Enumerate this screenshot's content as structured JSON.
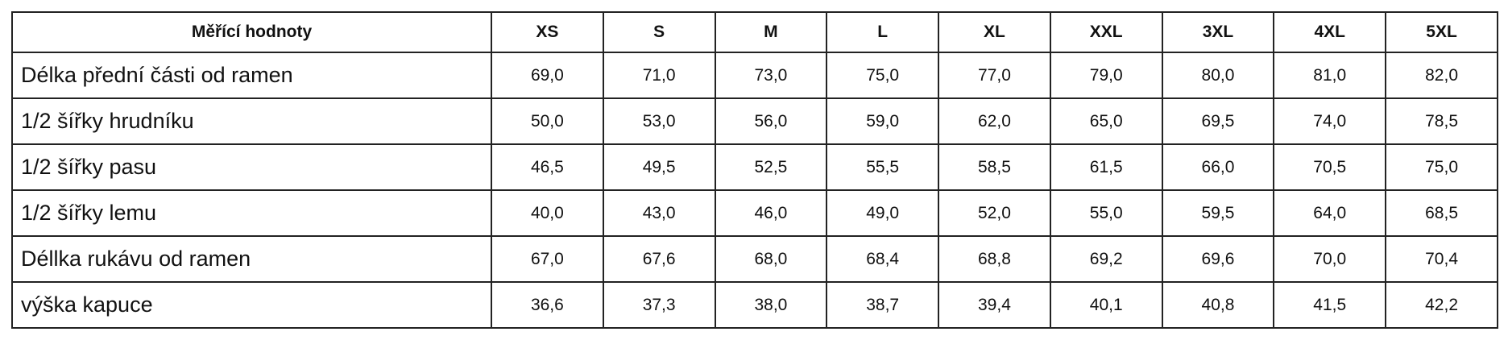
{
  "table": {
    "header": [
      "Měřící hodnoty",
      "XS",
      "S",
      "M",
      "L",
      "XL",
      "XXL",
      "3XL",
      "4XL",
      "5XL"
    ],
    "rows": [
      [
        "Délka přední části od ramen",
        "69,0",
        "71,0",
        "73,0",
        "75,0",
        "77,0",
        "79,0",
        "80,0",
        "81,0",
        "82,0"
      ],
      [
        "1/2 šířky hrudníku",
        "50,0",
        "53,0",
        "56,0",
        "59,0",
        "62,0",
        "65,0",
        "69,5",
        "74,0",
        "78,5"
      ],
      [
        "1/2 šířky pasu",
        "46,5",
        "49,5",
        "52,5",
        "55,5",
        "58,5",
        "61,5",
        "66,0",
        "70,5",
        "75,0"
      ],
      [
        "1/2 šířky lemu",
        "40,0",
        "43,0",
        "46,0",
        "49,0",
        "52,0",
        "55,0",
        "59,5",
        "64,0",
        "68,5"
      ],
      [
        "Déllka rukávu od ramen",
        "67,0",
        "67,6",
        "68,0",
        "68,4",
        "68,8",
        "69,2",
        "69,6",
        "70,0",
        "70,4"
      ],
      [
        "výška kapuce",
        "36,6",
        "37,3",
        "38,0",
        "38,7",
        "39,4",
        "40,1",
        "40,8",
        "41,5",
        "42,2"
      ]
    ]
  }
}
